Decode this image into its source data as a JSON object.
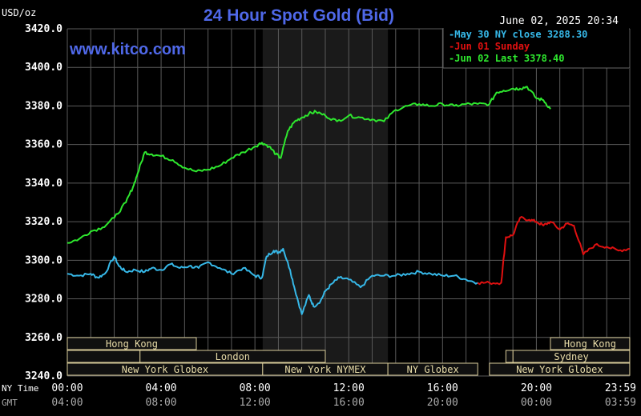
{
  "header": {
    "title": "24 Hour Spot Gold (Bid)",
    "unit": "USD/oz",
    "timestamp": "June 02, 2025 20:34",
    "watermark": "www.kitco.com"
  },
  "colors": {
    "background": "#000000",
    "grid": "#5a5a5a",
    "title": "#4f68e8",
    "may30": "#36b8e8",
    "jun01": "#e01010",
    "jun02": "#2ee82e",
    "session_fill": "#101010",
    "session_border": "#d9cc9a",
    "session_text": "#e8dca8",
    "highlight": "#1a1a1a"
  },
  "chart_data": {
    "type": "line",
    "title": "24 Hour Spot Gold (Bid)",
    "ylabel": "USD/oz",
    "ylim": [
      3240,
      3420
    ],
    "xlim": [
      0,
      23.983
    ],
    "yticks": [
      "3420.0",
      "3400.0",
      "3380.0",
      "3360.0",
      "3340.0",
      "3320.0",
      "3300.0",
      "3280.0",
      "3260.0",
      "3240.0"
    ],
    "xaxis_rows": [
      {
        "label": "NY Time",
        "ticks": [
          "00:00",
          "04:00",
          "08:00",
          "12:00",
          "16:00",
          "20:00",
          "23:59"
        ]
      },
      {
        "label": "GMT",
        "ticks": [
          "04:00",
          "08:00",
          "12:00",
          "16:00",
          "20:00",
          "00:00",
          "03:59"
        ]
      }
    ],
    "grid": true,
    "highlight_range_hours": [
      8.33,
      13.67
    ],
    "legend": {
      "placement": "top-right",
      "items": [
        {
          "key": "may30",
          "text": "May 30 NY close 3288.30"
        },
        {
          "key": "jun01",
          "text": "Jun 01 Sunday"
        },
        {
          "key": "jun02",
          "text": "Jun 02 Last 3378.40"
        }
      ]
    },
    "series": [
      {
        "name": "May 30 NY close 3288.30",
        "key": "may30",
        "x": [
          0,
          0.5,
          1.0,
          1.3,
          1.6,
          2.0,
          2.2,
          2.5,
          2.9,
          3.3,
          3.6,
          4.0,
          4.4,
          4.8,
          5.2,
          5.6,
          6.0,
          6.5,
          7.0,
          7.5,
          8.0,
          8.3,
          8.5,
          8.8,
          9.0,
          9.2,
          9.5,
          9.7,
          10.0,
          10.3,
          10.5,
          10.8,
          11.0,
          11.3,
          11.6,
          12.0,
          12.5,
          13.0,
          13.5,
          14.0,
          14.5,
          15.0,
          15.5,
          16.0,
          16.5,
          17.0,
          17.5
        ],
        "y": [
          3293,
          3292,
          3293,
          3291,
          3293,
          3302,
          3297,
          3294,
          3295,
          3294,
          3296,
          3295,
          3298,
          3296,
          3297,
          3296,
          3299,
          3296,
          3293,
          3296,
          3292,
          3291,
          3302,
          3305,
          3304,
          3306,
          3295,
          3285,
          3272,
          3282,
          3276,
          3279,
          3284,
          3288,
          3291,
          3290,
          3286,
          3292,
          3292,
          3292,
          3293,
          3294,
          3293,
          3292,
          3292,
          3290,
          3288.3
        ]
      },
      {
        "name": "Jun 01 Sunday",
        "key": "jun01",
        "x": [
          17.5,
          18.0,
          18.5,
          18.7,
          19.0,
          19.3,
          19.7,
          20.0,
          20.3,
          20.6,
          21.0,
          21.3,
          21.6,
          22.0,
          22.5,
          23.0,
          23.5,
          23.98
        ],
        "y": [
          3288.3,
          3288.3,
          3288.3,
          3312,
          3313,
          3322,
          3321,
          3320,
          3318,
          3320,
          3316,
          3319,
          3318,
          3303,
          3308,
          3307,
          3305,
          3306
        ]
      },
      {
        "name": "Jun 02 Last 3378.40",
        "key": "jun02",
        "x": [
          0,
          0.5,
          1.0,
          1.5,
          2.0,
          2.5,
          2.8,
          3.0,
          3.3,
          3.6,
          4.0,
          4.5,
          5.0,
          5.5,
          6.0,
          6.5,
          7.0,
          7.5,
          8.0,
          8.3,
          8.6,
          8.9,
          9.1,
          9.4,
          9.7,
          10.0,
          10.3,
          10.6,
          11.0,
          11.5,
          12.0,
          12.5,
          13.0,
          13.5,
          14.0,
          14.5,
          15.0,
          15.5,
          16.0,
          16.5,
          17.0,
          17.5,
          18.0,
          18.3,
          18.6,
          19.0,
          19.3,
          19.6,
          20.0,
          20.3,
          20.6
        ],
        "y": [
          3309,
          3311,
          3315,
          3317,
          3322,
          3330,
          3338,
          3345,
          3356,
          3355,
          3354,
          3352,
          3348,
          3346,
          3347,
          3349,
          3353,
          3356,
          3359,
          3361,
          3359,
          3355,
          3353,
          3367,
          3372,
          3374,
          3376,
          3377,
          3375,
          3372,
          3375,
          3374,
          3373,
          3372,
          3378,
          3380,
          3381,
          3380,
          3381,
          3380,
          3381,
          3381,
          3381,
          3387,
          3388,
          3389,
          3389,
          3390,
          3384,
          3383,
          3378.4
        ]
      }
    ],
    "sessions": [
      {
        "label": "Hong Kong",
        "row": 0,
        "start": 0,
        "end": 5.5
      },
      {
        "label": "",
        "row": 1,
        "start": 0,
        "end": 3.1
      },
      {
        "label": "London",
        "row": 1,
        "start": 3.1,
        "end": 11.0
      },
      {
        "label": "New York Globex",
        "row": 2,
        "start": 0,
        "end": 8.33
      },
      {
        "label": "New York NYMEX",
        "row": 2,
        "start": 8.33,
        "end": 13.67
      },
      {
        "label": "NY Globex",
        "row": 2,
        "start": 13.67,
        "end": 17.5
      },
      {
        "label": "Hong Kong",
        "row": 0,
        "start": 20.6,
        "end": 23.98
      },
      {
        "label": "Sydney",
        "row": 1,
        "start": 19.0,
        "end": 23.98
      },
      {
        "label": "",
        "row": 1,
        "start": 18.7,
        "end": 19.0
      },
      {
        "label": "New York Globex",
        "row": 2,
        "start": 18.0,
        "end": 23.98
      }
    ]
  }
}
